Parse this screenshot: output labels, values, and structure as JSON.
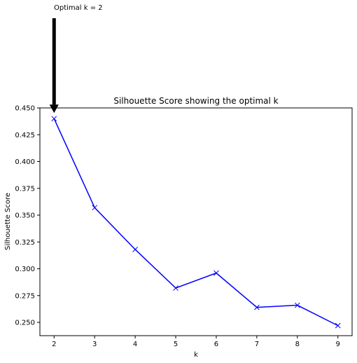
{
  "chart_data": {
    "type": "line",
    "title": "Silhouette Score showing the optimal k",
    "xlabel": "k",
    "ylabel": "Silhouette Score",
    "x": [
      2,
      3,
      4,
      5,
      6,
      7,
      8,
      9
    ],
    "series": [
      {
        "values": [
          0.44,
          0.357,
          0.318,
          0.282,
          0.296,
          0.264,
          0.266,
          0.247
        ],
        "color": "#0000ff",
        "marker": "x"
      }
    ],
    "xlim": [
      1.65,
      9.35
    ],
    "ylim": [
      0.2376,
      0.45
    ],
    "xticks": [
      "2",
      "3",
      "4",
      "5",
      "6",
      "7",
      "8",
      "9"
    ],
    "yticks": [
      "0.250",
      "0.275",
      "0.300",
      "0.325",
      "0.350",
      "0.375",
      "0.400",
      "0.425",
      "0.450"
    ],
    "grid": false,
    "annotation": {
      "text": "Optimal k = 2",
      "x": 2,
      "y": 0.44,
      "arrow_color": "#000000"
    }
  }
}
